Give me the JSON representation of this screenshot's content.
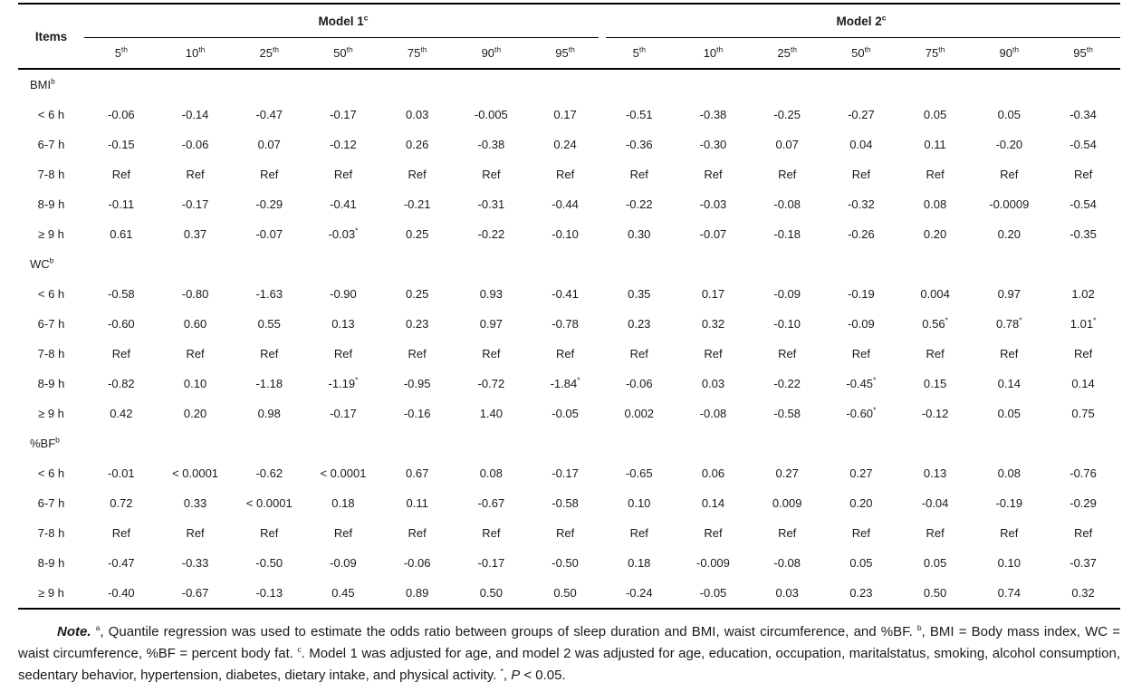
{
  "colors": {
    "text": "#1a1a1a",
    "rule": "#000000",
    "background": "#ffffff"
  },
  "table": {
    "items_header": "Items",
    "models": [
      {
        "label": "Model 1",
        "sup": "c"
      },
      {
        "label": "Model 2",
        "sup": "c"
      }
    ],
    "percentiles": [
      "5",
      "10",
      "25",
      "50",
      "75",
      "90",
      "95"
    ],
    "percentile_suffix": "th",
    "sections": [
      {
        "label": "BMI",
        "sup": "b",
        "rows": [
          {
            "label": "< 6 h",
            "model1": [
              "-0.06",
              "-0.14",
              "-0.47",
              "-0.17",
              "0.03",
              "-0.005",
              "0.17"
            ],
            "model2": [
              "-0.51",
              "-0.38",
              "-0.25",
              "-0.27",
              "0.05",
              "0.05",
              "-0.34"
            ]
          },
          {
            "label": "6-7 h",
            "model1": [
              "-0.15",
              "-0.06",
              "0.07",
              "-0.12",
              "0.26",
              "-0.38",
              "0.24"
            ],
            "model2": [
              "-0.36",
              "-0.30",
              "0.07",
              "0.04",
              "0.11",
              "-0.20",
              "-0.54"
            ]
          },
          {
            "label": "7-8 h",
            "model1": [
              "Ref",
              "Ref",
              "Ref",
              "Ref",
              "Ref",
              "Ref",
              "Ref"
            ],
            "model2": [
              "Ref",
              "Ref",
              "Ref",
              "Ref",
              "Ref",
              "Ref",
              "Ref"
            ]
          },
          {
            "label": "8-9 h",
            "model1": [
              "-0.11",
              "-0.17",
              "-0.29",
              "-0.41",
              "-0.21",
              "-0.31",
              "-0.44"
            ],
            "model2": [
              "-0.22",
              "-0.03",
              "-0.08",
              "-0.32",
              "0.08",
              "-0.0009",
              "-0.54"
            ]
          },
          {
            "label": "≥ 9 h",
            "model1": [
              "0.61",
              "0.37",
              "-0.07",
              "-0.03*",
              "0.25",
              "-0.22",
              "-0.10"
            ],
            "model2": [
              "0.30",
              "-0.07",
              "-0.18",
              "-0.26",
              "0.20",
              "0.20",
              "-0.35"
            ]
          }
        ]
      },
      {
        "label": "WC",
        "sup": "b",
        "rows": [
          {
            "label": "< 6 h",
            "model1": [
              "-0.58",
              "-0.80",
              "-1.63",
              "-0.90",
              "0.25",
              "0.93",
              "-0.41"
            ],
            "model2": [
              "0.35",
              "0.17",
              "-0.09",
              "-0.19",
              "0.004",
              "0.97",
              "1.02"
            ]
          },
          {
            "label": "6-7 h",
            "model1": [
              "-0.60",
              "0.60",
              "0.55",
              "0.13",
              "0.23",
              "0.97",
              "-0.78"
            ],
            "model2": [
              "0.23",
              "0.32",
              "-0.10",
              "-0.09",
              "0.56*",
              "0.78*",
              "1.01*"
            ]
          },
          {
            "label": "7-8 h",
            "model1": [
              "Ref",
              "Ref",
              "Ref",
              "Ref",
              "Ref",
              "Ref",
              "Ref"
            ],
            "model2": [
              "Ref",
              "Ref",
              "Ref",
              "Ref",
              "Ref",
              "Ref",
              "Ref"
            ]
          },
          {
            "label": "8-9 h",
            "model1": [
              "-0.82",
              "0.10",
              "-1.18",
              "-1.19*",
              "-0.95",
              "-0.72",
              "-1.84*"
            ],
            "model2": [
              "-0.06",
              "0.03",
              "-0.22",
              "-0.45*",
              "0.15",
              "0.14",
              "0.14"
            ]
          },
          {
            "label": "≥ 9 h",
            "model1": [
              "0.42",
              "0.20",
              "0.98",
              "-0.17",
              "-0.16",
              "1.40",
              "-0.05"
            ],
            "model2": [
              "0.002",
              "-0.08",
              "-0.58",
              "-0.60*",
              "-0.12",
              "0.05",
              "0.75"
            ]
          }
        ]
      },
      {
        "label": "%BF",
        "sup": "b",
        "rows": [
          {
            "label": "< 6 h",
            "model1": [
              "-0.01",
              "< 0.0001",
              "-0.62",
              "< 0.0001",
              "0.67",
              "0.08",
              "-0.17"
            ],
            "model2": [
              "-0.65",
              "0.06",
              "0.27",
              "0.27",
              "0.13",
              "0.08",
              "-0.76"
            ]
          },
          {
            "label": "6-7 h",
            "model1": [
              "0.72",
              "0.33",
              "< 0.0001",
              "0.18",
              "0.11",
              "-0.67",
              "-0.58"
            ],
            "model2": [
              "0.10",
              "0.14",
              "0.009",
              "0.20",
              "-0.04",
              "-0.19",
              "-0.29"
            ]
          },
          {
            "label": "7-8 h",
            "model1": [
              "Ref",
              "Ref",
              "Ref",
              "Ref",
              "Ref",
              "Ref",
              "Ref"
            ],
            "model2": [
              "Ref",
              "Ref",
              "Ref",
              "Ref",
              "Ref",
              "Ref",
              "Ref"
            ]
          },
          {
            "label": "8-9 h",
            "model1": [
              "-0.47",
              "-0.33",
              "-0.50",
              "-0.09",
              "-0.06",
              "-0.17",
              "-0.50"
            ],
            "model2": [
              "0.18",
              "-0.009",
              "-0.08",
              "0.05",
              "0.05",
              "0.10",
              "-0.37"
            ]
          },
          {
            "label": "≥ 9 h",
            "model1": [
              "-0.40",
              "-0.67",
              "-0.13",
              "0.45",
              "0.89",
              "0.50",
              "0.50"
            ],
            "model2": [
              "-0.24",
              "-0.05",
              "0.03",
              "0.23",
              "0.50",
              "0.74",
              "0.32"
            ]
          }
        ]
      }
    ]
  },
  "note": {
    "segments": [
      {
        "t": "Note.",
        "b": true,
        "i": true
      },
      {
        "t": " "
      },
      {
        "t": "a",
        "sup": true
      },
      {
        "t": ", Quantile regression was used to estimate the odds ratio between groups of sleep duration and BMI, waist circumference, and %BF. "
      },
      {
        "t": "b",
        "sup": true
      },
      {
        "t": ", BMI = Body mass index, WC = waist circumference, %BF = percent body fat. "
      },
      {
        "t": "c",
        "sup": true
      },
      {
        "t": ". Model 1 was adjusted for age, and model 2 was adjusted for age, education, occupation, maritalstatus, smoking, alcohol consumption, sedentary behavior, hypertension, diabetes, dietary intake, and physical activity. "
      },
      {
        "t": "*",
        "sup": true
      },
      {
        "t": ", "
      },
      {
        "t": "P",
        "i": true
      },
      {
        "t": " < 0.05."
      }
    ]
  }
}
